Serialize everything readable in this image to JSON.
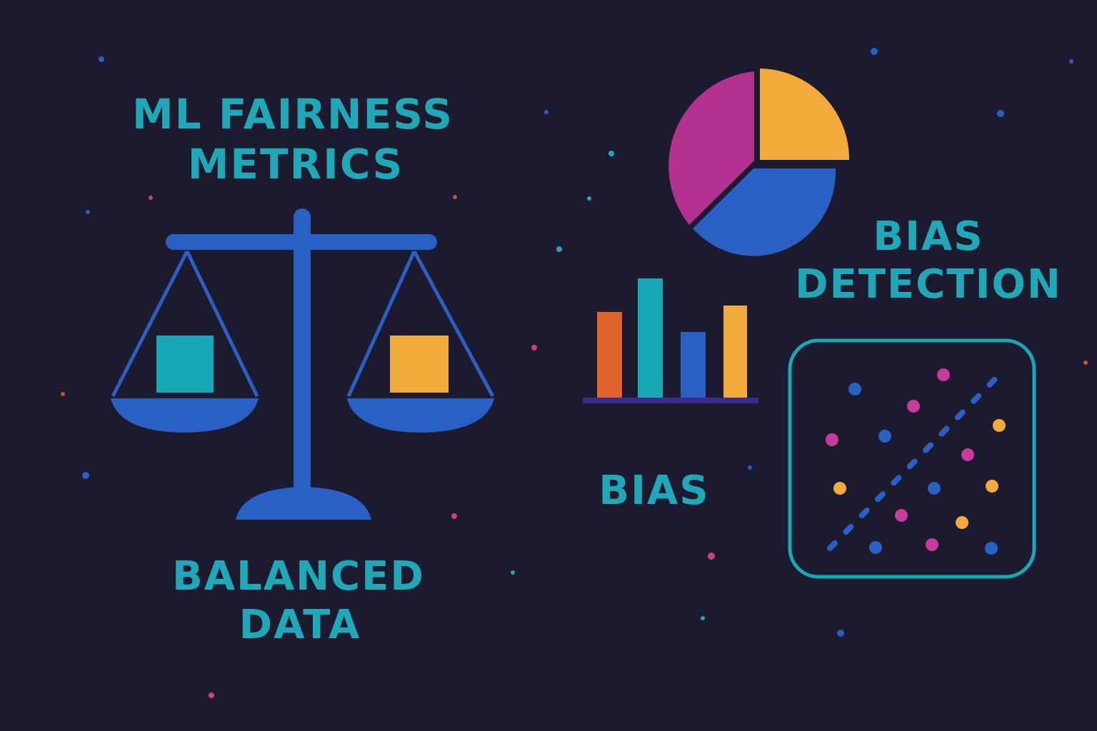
{
  "heading": {
    "lines": [
      "ML FAIRNESS",
      "METRICS"
    ]
  },
  "detection": {
    "lines": [
      "BIAS",
      "DETECTION"
    ]
  },
  "bias_label": "BIAS",
  "balanced": {
    "lines": [
      "BALANCED",
      "DATA"
    ]
  }
}
